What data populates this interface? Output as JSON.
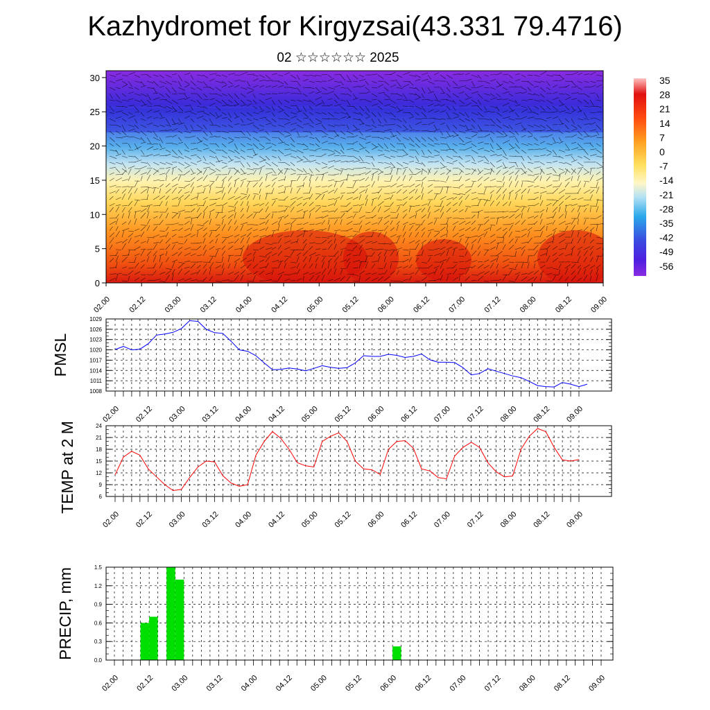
{
  "title": "Kazhydromet for Kirgyzsai(43.331 79.4716)",
  "subtitle": "02 ☆☆☆☆☆☆ 2025",
  "time_labels": [
    "02.00",
    "02.12",
    "03.00",
    "03.12",
    "04.00",
    "04.12",
    "05.00",
    "05.12",
    "06.00",
    "06.12",
    "07.00",
    "07.12",
    "08.00",
    "08.12",
    "09.00"
  ],
  "chart_data": [
    {
      "type": "heatmap",
      "name": "cross-section",
      "y_ticks": [
        "0",
        "5",
        "10",
        "15",
        "20",
        "25",
        "30"
      ],
      "ylim": [
        0,
        31
      ],
      "colorbar_labels": [
        "35",
        "28",
        "21",
        "14",
        "7",
        "0",
        "-7",
        "-14",
        "-21",
        "-28",
        "-35",
        "-42",
        "-49",
        "-56"
      ],
      "colorbar_range": [
        -60,
        38
      ],
      "colors": [
        "#8a2be2",
        "#3b2bd9",
        "#3f8fe6",
        "#bfe3f2",
        "#fff2a0",
        "#ffc640",
        "#ff8c1a",
        "#f04a10",
        "#e01010"
      ]
    },
    {
      "type": "line",
      "ylabel": "PMSL",
      "y_ticks": [
        "1029",
        "1026",
        "1023",
        "1020",
        "1017",
        "1014",
        "1011",
        "1008"
      ],
      "ylim": [
        1008,
        1029
      ],
      "color": "#0000ff",
      "values": [
        1020.1,
        1021.0,
        1020.0,
        1020.2,
        1021.8,
        1024.3,
        1024.6,
        1025.1,
        1026.2,
        1028.5,
        1028.3,
        1026.0,
        1025.0,
        1024.8,
        1022.5,
        1020.0,
        1019.6,
        1018.3,
        1016.2,
        1014.2,
        1014.3,
        1014.7,
        1014.4,
        1013.9,
        1014.6,
        1015.4,
        1014.9,
        1014.6,
        1014.8,
        1016.2,
        1018.3,
        1018.1,
        1018.1,
        1018.7,
        1018.4,
        1017.8,
        1018.1,
        1018.8,
        1017.1,
        1016.4,
        1016.4,
        1016.3,
        1014.8,
        1012.7,
        1013.1,
        1014.5,
        1013.8,
        1013.1,
        1012.4,
        1011.9,
        1010.8,
        1009.6,
        1009.3,
        1009.2,
        1010.5,
        1010.0,
        1009.3,
        1010.0
      ]
    },
    {
      "type": "line",
      "ylabel": "TEMP at 2 M",
      "y_ticks": [
        "24",
        "21",
        "18",
        "15",
        "12",
        "9",
        "6"
      ],
      "ylim": [
        6,
        24
      ],
      "color": "#ff0000",
      "values": [
        11.5,
        16.0,
        17.5,
        16.5,
        13.0,
        11.0,
        9.0,
        7.5,
        7.8,
        10.8,
        13.5,
        15.0,
        14.8,
        11.3,
        9.4,
        8.6,
        9.0,
        16.5,
        20.0,
        22.5,
        20.8,
        18.0,
        14.6,
        13.8,
        13.5,
        20.0,
        21.3,
        22.2,
        20.0,
        15.0,
        13.0,
        12.8,
        11.6,
        18.0,
        20.0,
        20.2,
        18.3,
        13.0,
        12.5,
        10.8,
        10.5,
        16.3,
        18.5,
        19.8,
        18.5,
        14.6,
        12.3,
        11.0,
        11.2,
        18.0,
        21.3,
        23.3,
        22.5,
        18.5,
        15.3,
        15.0,
        15.4
      ]
    },
    {
      "type": "bar",
      "ylabel": "PRECIP, mm",
      "y_ticks": [
        "1.5",
        "1.2",
        "0.9",
        "0.6",
        "0.3",
        "0.0"
      ],
      "ylim": [
        0,
        1.5
      ],
      "color": "#00e000",
      "bars": [
        {
          "x": 3.5,
          "value": 0.6
        },
        {
          "x": 4.5,
          "value": 0.7
        },
        {
          "x": 6.5,
          "value": 1.5
        },
        {
          "x": 7.5,
          "value": 1.3
        },
        {
          "x": 32.5,
          "value": 0.22
        }
      ]
    }
  ]
}
